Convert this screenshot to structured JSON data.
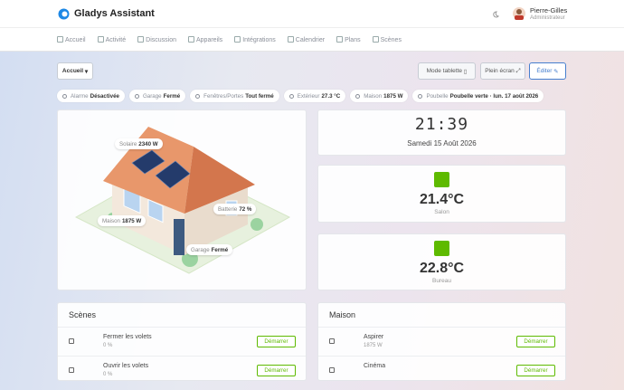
{
  "header": {
    "title": "Gladys Assistant",
    "user_name": "Pierre-Gilles",
    "user_role": "Administrateur"
  },
  "nav": [
    "Accueil",
    "Activité",
    "Discussion",
    "Appareils",
    "Intégrations",
    "Calendrier",
    "Plans",
    "Scènes"
  ],
  "toolbar": {
    "dashboard": "Accueil",
    "buttons": [
      "Mode tablette",
      "Plein écran",
      "Éditer"
    ]
  },
  "status": [
    {
      "label": "Alarme",
      "value": "Désactivée"
    },
    {
      "label": "Garage",
      "value": "Fermé"
    },
    {
      "label": "Fenêtres/Portes",
      "value": "Tout fermé"
    },
    {
      "label": "Extérieur",
      "value": "27.3 °C"
    },
    {
      "label": "Maison",
      "value": "1875 W"
    },
    {
      "label": "Poubelle",
      "value": "Poubelle verte · lun. 17 août 2026"
    }
  ],
  "house": {
    "labels": [
      {
        "label": "Solaire",
        "value": "2340 W"
      },
      {
        "label": "Maison",
        "value": "1875 W"
      },
      {
        "label": "Batterie",
        "value": "72 %"
      },
      {
        "label": "Garage",
        "value": "Fermé"
      }
    ]
  },
  "clock": {
    "time": "21:39",
    "date": "Samedi 15 Août 2026"
  },
  "temperatures": [
    {
      "value": "21.4°C",
      "room": "Salon"
    },
    {
      "value": "22.8°C",
      "room": "Bureau"
    }
  ],
  "scenes": {
    "title": "Scènes",
    "rows": [
      {
        "name": "Fermer les volets",
        "detail": "0 %",
        "action": "Démarrer"
      },
      {
        "name": "Ouvrir les volets",
        "detail": "0 %",
        "action": "Démarrer"
      }
    ]
  },
  "maison": {
    "title": "Maison",
    "rows": [
      {
        "name": "Aspirer",
        "detail": "1875 W",
        "action": "Démarrer"
      },
      {
        "name": "Cinéma",
        "action": "Démarrer"
      }
    ]
  }
}
